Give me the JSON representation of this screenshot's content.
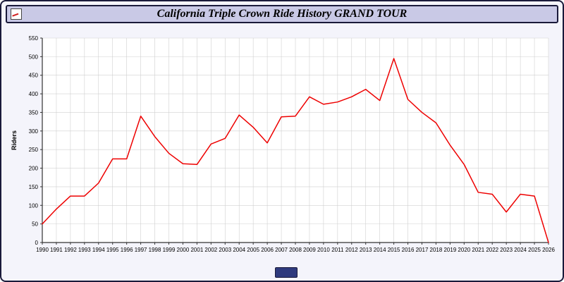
{
  "window": {
    "title": "California Triple Crown Ride History GRAND TOUR"
  },
  "chart_data": {
    "type": "line",
    "title": "California Triple Crown Ride History GRAND TOUR",
    "xlabel": "",
    "ylabel": "Riders",
    "ylim": [
      0,
      550
    ],
    "y_tick_step": 50,
    "grid": true,
    "legend": "none",
    "line_color": "#ee0000",
    "grid_color": "#d0d0d0",
    "axis_color": "#333333",
    "plot_background": "#ffffff",
    "categories": [
      "1990",
      "1991",
      "1992",
      "1993",
      "1994",
      "1995",
      "1996",
      "1997",
      "1998",
      "1999",
      "2000",
      "2001",
      "2002",
      "2003",
      "2004",
      "2005",
      "2006",
      "2007",
      "2008",
      "2009",
      "2010",
      "2011",
      "2012",
      "2013",
      "2014",
      "2015",
      "2016",
      "2017",
      "2018",
      "2019",
      "2020",
      "2021",
      "2022",
      "2023",
      "2024",
      "2025",
      "2026"
    ],
    "values": [
      50,
      90,
      125,
      125,
      160,
      225,
      225,
      340,
      285,
      240,
      212,
      210,
      265,
      280,
      343,
      310,
      268,
      338,
      340,
      392,
      372,
      378,
      392,
      412,
      382,
      495,
      385,
      350,
      322,
      262,
      210,
      135,
      130,
      82,
      130,
      125,
      0
    ]
  },
  "footer": {
    "button_label": ""
  }
}
